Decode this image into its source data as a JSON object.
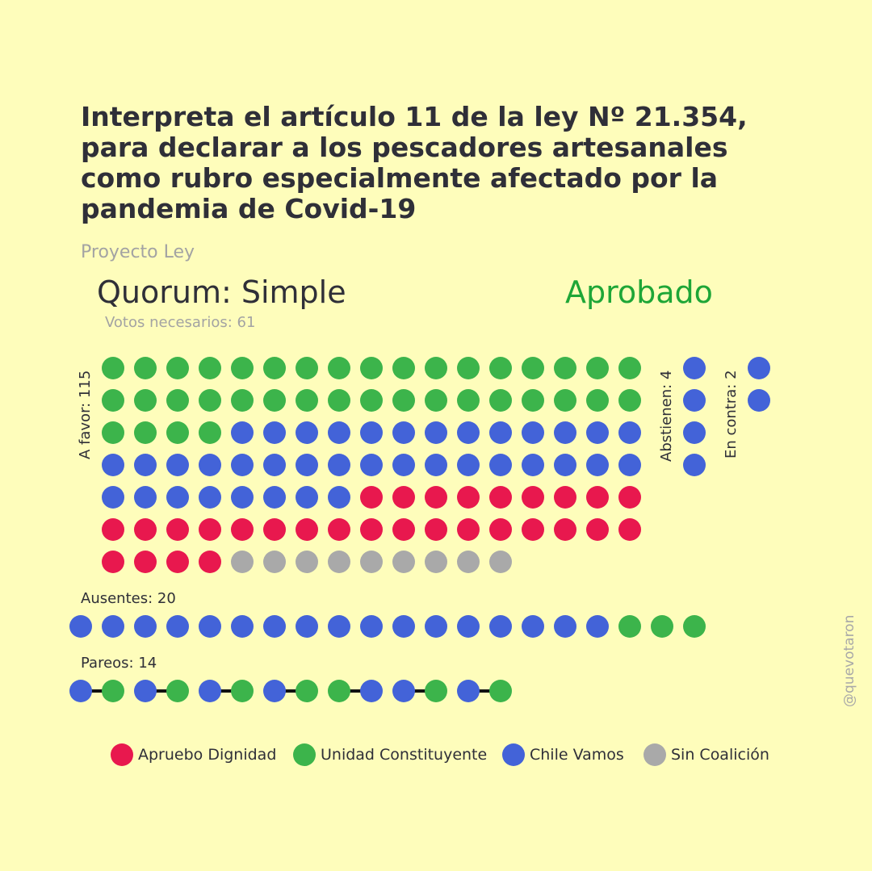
{
  "title": "Interpreta el artículo 11 de la ley Nº 21.354, para declarar a los pescadores artesanales como rubro especialmente afectado por la pandemia de Covid-19",
  "subtitle": "Proyecto Ley",
  "quorum_label": "Quorum: Simple",
  "result": "Aprobado",
  "votes_needed": "Votos necesarios: 61",
  "handle": "@quevotaron",
  "colors": {
    "apruebo": "#E8184E",
    "unidad": "#3CB44B",
    "chile": "#4363D8",
    "sin": "#A9A9A9",
    "result": "#1ea637",
    "background": "#FEFDBB"
  },
  "chart_data": {
    "type": "waffle",
    "groups": [
      {
        "label": "A favor: 115",
        "count": 115,
        "breakdown": {
          "Unidad Constituyente": 38,
          "Chile Vamos": 38,
          "Apruebo Dignidad": 30,
          "Sin Coalición": 9
        }
      },
      {
        "label": "Abstienen: 4",
        "count": 4,
        "breakdown": {
          "Chile Vamos": 4
        }
      },
      {
        "label": "En contra: 2",
        "count": 2,
        "breakdown": {
          "Chile Vamos": 2
        }
      },
      {
        "label": "Ausentes: 20",
        "count": 20,
        "breakdown": {
          "Chile Vamos": 17,
          "Unidad Constituyente": 3
        }
      },
      {
        "label": "Pareos: 14",
        "count": 14,
        "breakdown": {
          "Chile Vamos": 7,
          "Unidad Constituyente": 7
        }
      }
    ],
    "legend": [
      "Apruebo Dignidad",
      "Unidad Constituyente",
      "Chile Vamos",
      "Sin Coalición"
    ]
  }
}
